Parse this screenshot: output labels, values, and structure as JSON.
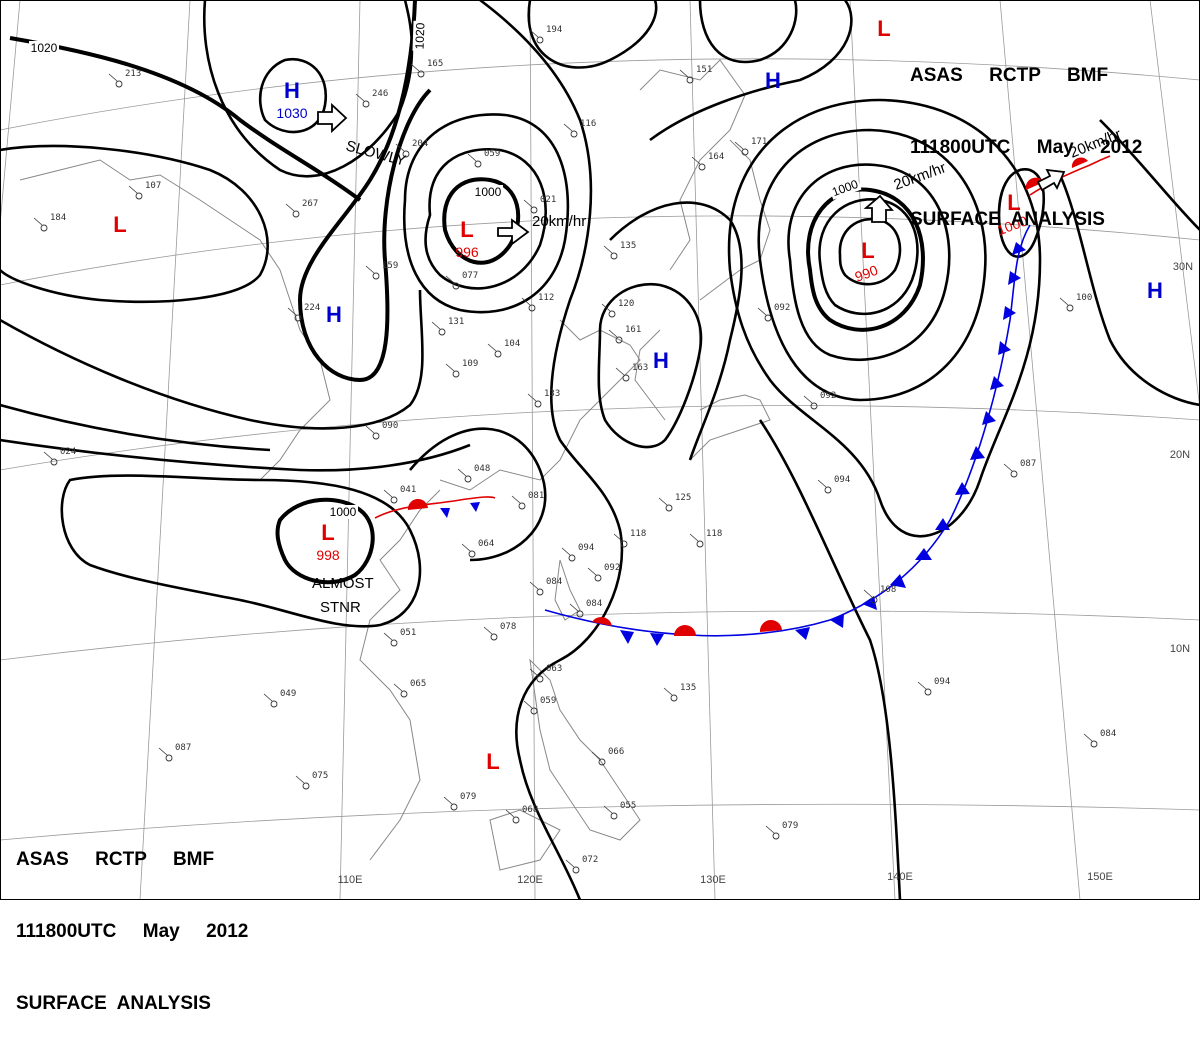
{
  "header_top": {
    "line1": "ASAS     RCTP     BMF",
    "line2": "111800UTC     May     2012",
    "line3": "SURFACE  ANALYSIS"
  },
  "header_bottom": {
    "line1": "ASAS     RCTP     BMF",
    "line2": "111800UTC     May     2012",
    "line3": "SURFACE  ANALYSIS"
  },
  "longitude_labels": [
    "110E",
    "120E",
    "130E",
    "140E",
    "150E"
  ],
  "latitude_labels": [
    "30N",
    "20N",
    "10N"
  ],
  "isobar_labels": [
    "1020",
    "1020",
    "1000",
    "1000",
    "1000"
  ],
  "pressure_centers": [
    {
      "type": "H",
      "value": "1030",
      "color": "#0000cc"
    },
    {
      "type": "L",
      "value": "996",
      "color": "#e00000"
    },
    {
      "type": "L",
      "value": "990",
      "color": "#e00000"
    },
    {
      "type": "L",
      "value": "998",
      "color": "#e00000"
    },
    {
      "type": "L",
      "value": "1000",
      "color": "#e00000"
    },
    {
      "type": "L",
      "value": "",
      "color": "#e00000"
    },
    {
      "type": "L",
      "value": "",
      "color": "#e00000"
    },
    {
      "type": "L",
      "value": "",
      "color": "#e00000"
    },
    {
      "type": "H",
      "value": "",
      "color": "#0000cc"
    },
    {
      "type": "H",
      "value": "",
      "color": "#0000cc"
    },
    {
      "type": "H",
      "value": "",
      "color": "#0000cc"
    },
    {
      "type": "H",
      "value": "",
      "color": "#0000cc"
    }
  ],
  "movement_labels": [
    "SLOWLY",
    "20km/hr",
    "20km/hr",
    "20km/hr",
    "ALMOST",
    "STNR"
  ],
  "front_colors": {
    "warm": "#e00000",
    "cold": "#0000e0"
  },
  "station_reports": [
    "194",
    "213",
    "246",
    "165",
    "107",
    "184",
    "267",
    "204",
    "059",
    "021",
    "116",
    "151",
    "164",
    "171",
    "135",
    "159",
    "077",
    "224",
    "131",
    "112",
    "120",
    "104",
    "109",
    "090",
    "161",
    "163",
    "133",
    "092",
    "100",
    "048",
    "081",
    "041",
    "064",
    "094",
    "125",
    "118",
    "118",
    "084",
    "094",
    "092",
    "084",
    "078",
    "051",
    "065",
    "049",
    "063",
    "059",
    "135",
    "066",
    "055",
    "079",
    "068",
    "072",
    "075",
    "087",
    "087",
    "094",
    "108",
    "092",
    "084",
    "079",
    "024"
  ]
}
